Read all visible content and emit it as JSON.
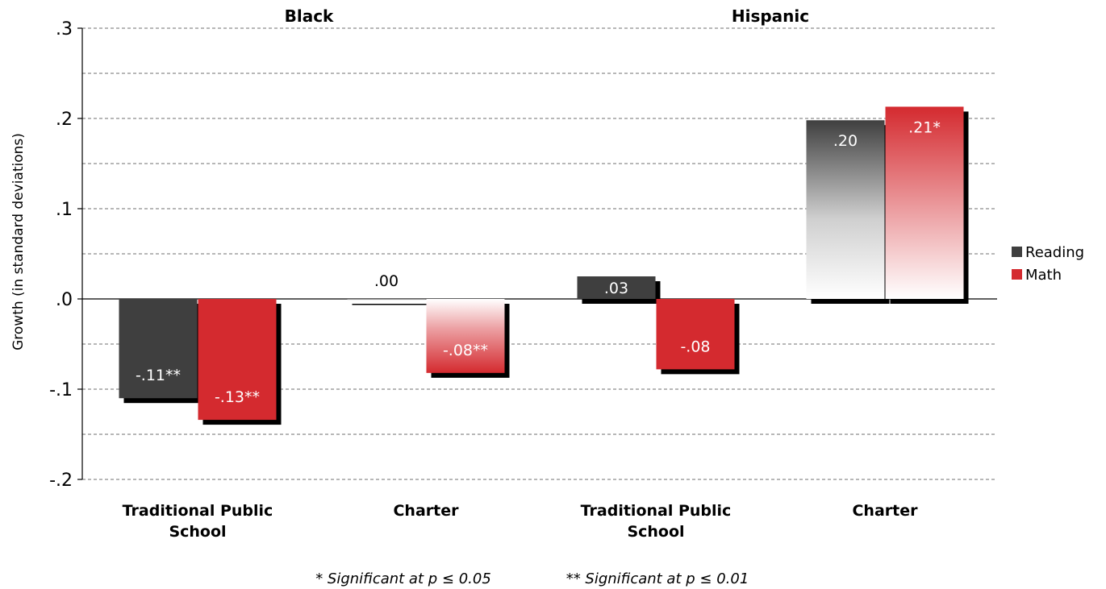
{
  "chart_data": {
    "type": "bar",
    "ylabel": "Growth (in standard deviations)",
    "ylim": [
      -0.2,
      0.3
    ],
    "major_ticks": [
      -0.2,
      -0.1,
      0.0,
      0.1,
      0.2,
      0.3
    ],
    "tick_labels": [
      "-.2",
      "-.1",
      ".0",
      ".1",
      ".2",
      ".3"
    ],
    "gridlines": [
      -0.2,
      -0.15,
      -0.1,
      -0.05,
      0.05,
      0.1,
      0.15,
      0.2,
      0.25,
      0.3
    ],
    "groups": [
      "Black",
      "Hispanic"
    ],
    "categories": [
      "Traditional Public School",
      "Charter",
      "Traditional Public School",
      "Charter"
    ],
    "series": [
      {
        "name": "Reading",
        "values": [
          -0.11,
          0.0,
          0.025,
          0.198
        ],
        "labels": [
          "-.11**",
          ".00",
          ".03",
          ".20"
        ]
      },
      {
        "name": "Math",
        "values": [
          -0.134,
          -0.082,
          -0.078,
          0.213
        ],
        "labels": [
          "-.13**",
          "-.08**",
          "-.08",
          ".21*"
        ]
      }
    ],
    "gradient_fill": [
      false,
      true,
      false,
      true
    ],
    "legend": {
      "position": "right",
      "entries": [
        "Reading",
        "Math"
      ]
    },
    "grid": true,
    "footnote_1": "* Significant at p ≤ 0.05",
    "footnote_2": "** Significant at p ≤ 0.01"
  },
  "colors": {
    "reading": "#3f3f3f",
    "math": "#d42a2f",
    "shadow": "#000000",
    "grid": "#8c8c8c",
    "axis": "#000000"
  }
}
